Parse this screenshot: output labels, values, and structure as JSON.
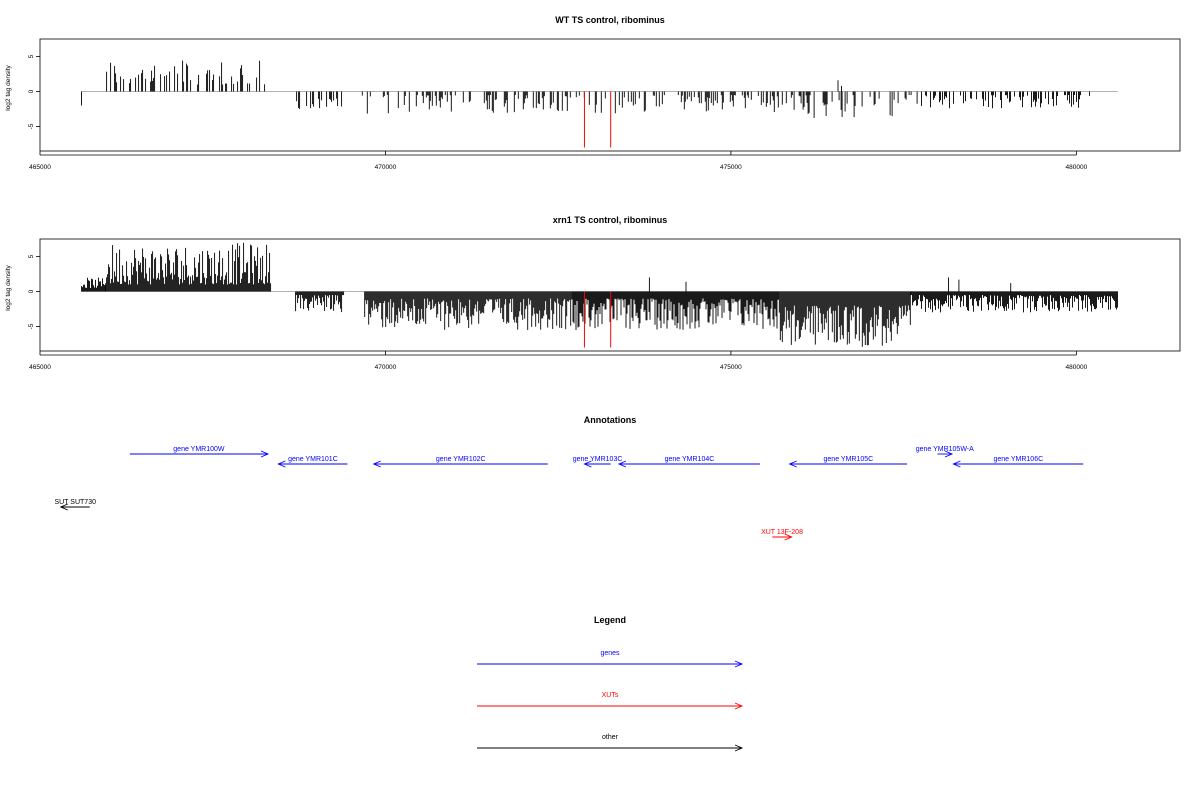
{
  "chart_data": [
    {
      "type": "bar",
      "title": "WT TS control, ribominus",
      "ylabel": "log2 tag density",
      "xlim": [
        465000,
        481500
      ],
      "ylim": [
        -8.5,
        7.5
      ],
      "xticks": [
        "465000",
        "470000",
        "475000",
        "480000"
      ],
      "yticks": [
        "5",
        "0",
        "-5"
      ],
      "baseline": {
        "x": [
          465600,
          480600
        ],
        "y": 0
      },
      "series": [
        {
          "color": "#000000",
          "density": 0.35,
          "segments": [
            {
              "from": 465950,
              "to": 468300,
              "sign": 1,
              "min": 1,
              "max": 4.8
            },
            {
              "from": 468700,
              "to": 469400,
              "sign": -1,
              "min": 1,
              "max": 2.6
            },
            {
              "from": 469650,
              "to": 475900,
              "sign": -1,
              "min": 0.5,
              "max": 3.2
            },
            {
              "from": 475900,
              "to": 477700,
              "sign": -1,
              "min": 0.5,
              "max": 3.8
            },
            {
              "from": 477700,
              "to": 480200,
              "sign": -1,
              "min": 0.5,
              "max": 2.5
            }
          ]
        },
        {
          "color": "#ff0000",
          "points": [
            [
              472880,
              -8
            ],
            [
              473260,
              -8
            ]
          ]
        }
      ],
      "extra_bars": [
        [
          465600,
          -2
        ],
        [
          476550,
          1.6
        ],
        [
          476600,
          0.8
        ]
      ]
    },
    {
      "type": "bar",
      "title": "xrn1 TS control, ribominus",
      "ylabel": "log2 tag density",
      "xlim": [
        465000,
        481500
      ],
      "ylim": [
        -8.5,
        7.5
      ],
      "xticks": [
        "465000",
        "470000",
        "475000",
        "480000"
      ],
      "yticks": [
        "5",
        "0",
        "-5"
      ],
      "baseline": {
        "x": [
          465600,
          480600
        ],
        "y": 0
      },
      "series": [
        {
          "color": "#000000",
          "density": 1.0,
          "segments": [
            {
              "from": 465600,
              "to": 465950,
              "sign": 1,
              "min": 0.5,
              "max": 2.0
            },
            {
              "from": 465950,
              "to": 468350,
              "sign": 1,
              "min": 1,
              "max": 7.0
            },
            {
              "from": 468700,
              "to": 469400,
              "sign": -1,
              "min": 0.5,
              "max": 3.0
            },
            {
              "from": 469700,
              "to": 472700,
              "sign": -1,
              "min": 1,
              "max": 5.5
            },
            {
              "from": 472700,
              "to": 475700,
              "sign": -1,
              "min": 1,
              "max": 5.5
            },
            {
              "from": 475700,
              "to": 477600,
              "sign": -1,
              "min": 2,
              "max": 8.0
            },
            {
              "from": 477600,
              "to": 480600,
              "sign": -1,
              "min": 0.5,
              "max": 3.0
            }
          ]
        },
        {
          "color": "#ff0000",
          "points": [
            [
              472880,
              -8
            ],
            [
              473260,
              -8
            ]
          ]
        }
      ],
      "extra_bars": [
        [
          473820,
          2.0
        ],
        [
          474350,
          1.4
        ],
        [
          478150,
          2.0
        ],
        [
          478300,
          1.7
        ],
        [
          479050,
          1.2
        ]
      ]
    }
  ],
  "annotations": {
    "title": "Annotations",
    "items": [
      {
        "label": "gene YMR100W",
        "color": "#0000ff",
        "from": 466300,
        "to": 468300,
        "dir": "right",
        "row": 0
      },
      {
        "label": "gene YMR101C",
        "color": "#0000ff",
        "from": 468450,
        "to": 469450,
        "dir": "left",
        "row": 1
      },
      {
        "label": "gene YMR102C",
        "color": "#0000ff",
        "from": 469830,
        "to": 472350,
        "dir": "left",
        "row": 1
      },
      {
        "label": "gene YMR103C",
        "color": "#0000ff",
        "from": 472880,
        "to": 473260,
        "dir": "left",
        "row": 1
      },
      {
        "label": "gene YMR104C",
        "color": "#0000ff",
        "from": 473380,
        "to": 475420,
        "dir": "left",
        "row": 1
      },
      {
        "label": "gene YMR105C",
        "color": "#0000ff",
        "from": 475850,
        "to": 477550,
        "dir": "left",
        "row": 1
      },
      {
        "label": "gene YMR105W-A",
        "color": "#0000ff",
        "from": 477990,
        "to": 478200,
        "dir": "right",
        "row": 0
      },
      {
        "label": "gene YMR106C",
        "color": "#0000ff",
        "from": 478220,
        "to": 480100,
        "dir": "left",
        "row": 1
      },
      {
        "label": "SUT SUT730",
        "color": "#000000",
        "from": 465300,
        "to": 465720,
        "dir": "left",
        "row": 2
      },
      {
        "label": "XUT 13F-208",
        "color": "#ff0000",
        "from": 475600,
        "to": 475880,
        "dir": "right",
        "row": 3
      }
    ]
  },
  "legend": {
    "title": "Legend",
    "items": [
      {
        "label": "genes",
        "color": "#0000ff"
      },
      {
        "label": "XUTs",
        "color": "#ff0000"
      },
      {
        "label": "other",
        "color": "#000000"
      }
    ]
  }
}
